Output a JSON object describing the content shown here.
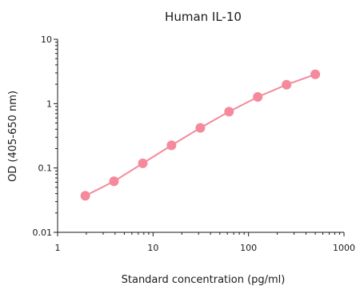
{
  "chart_data": {
    "type": "line",
    "title": "Human IL-10",
    "xlabel": "Standard concentration (pg/ml)",
    "ylabel": "OD (405-650 nm)",
    "x_scale": "log",
    "y_scale": "log",
    "xlim": [
      1,
      1000
    ],
    "ylim": [
      0.01,
      10
    ],
    "x_ticks": [
      1,
      10,
      100,
      1000
    ],
    "x_tick_labels": [
      "1",
      "10",
      "100",
      "1000"
    ],
    "y_ticks": [
      0.01,
      0.1,
      1,
      10
    ],
    "y_tick_labels": [
      "0.01",
      "0.1",
      "1",
      "10"
    ],
    "grid": false,
    "series": [
      {
        "x": [
          1.95,
          3.9,
          7.8,
          15.6,
          31.25,
          62.5,
          125,
          250,
          500
        ],
        "y": [
          0.037,
          0.062,
          0.118,
          0.225,
          0.42,
          0.75,
          1.27,
          1.97,
          2.85
        ],
        "color": "#f48a9b",
        "marker": "circle"
      }
    ]
  }
}
